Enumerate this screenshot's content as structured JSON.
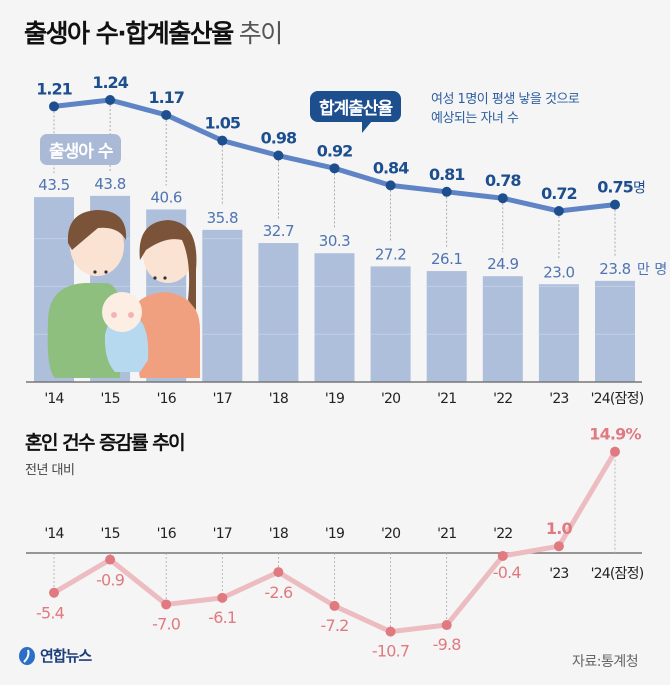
{
  "title": {
    "main": "출생아 수·합계출산율",
    "suffix": "추이"
  },
  "colors": {
    "bar": "#aebfdc",
    "bar_label": "#4f74b4",
    "tfr_line": "#5f84c6",
    "tfr_dot": "#1d4f8f",
    "tfr_label": "#1d4f8f",
    "marriage_line": "#ecbcc0",
    "marriage_dot": "#e07a80",
    "marriage_label": "#e07a80",
    "axis": "#777777"
  },
  "births_badge": "출생아 수",
  "tfr_badge": "합계출산율",
  "tfr_note": [
    "여성 1명이 평생 낳을 것으로",
    "예상되는 자녀 수"
  ],
  "section2": {
    "title": "혼인 건수 증감률 추이",
    "subtitle": "전년 대비"
  },
  "logo": "연합뉴스",
  "source": "자료:통계청",
  "chart_data": [
    {
      "type": "bar",
      "title": "출생아 수",
      "categories": [
        "'14",
        "'15",
        "'16",
        "'17",
        "'18",
        "'19",
        "'20",
        "'21",
        "'22",
        "'23",
        "'24(잠정)"
      ],
      "values": [
        43.5,
        43.8,
        40.6,
        35.8,
        32.7,
        30.3,
        27.2,
        26.1,
        24.9,
        23.0,
        23.8
      ],
      "labels": [
        "43.5",
        "43.8",
        "40.6",
        "35.8",
        "32.7",
        "30.3",
        "27.2",
        "26.1",
        "24.9",
        "23.0",
        "23.8"
      ],
      "unit": "만 명",
      "ylim": [
        0,
        45
      ]
    },
    {
      "type": "line",
      "title": "합계출산율",
      "categories": [
        "'14",
        "'15",
        "'16",
        "'17",
        "'18",
        "'19",
        "'20",
        "'21",
        "'22",
        "'23",
        "'24(잠정)"
      ],
      "values": [
        1.21,
        1.24,
        1.17,
        1.05,
        0.98,
        0.92,
        0.84,
        0.81,
        0.78,
        0.72,
        0.75
      ],
      "labels": [
        "1.21",
        "1.24",
        "1.17",
        "1.05",
        "0.98",
        "0.92",
        "0.84",
        "0.81",
        "0.78",
        "0.72",
        "0.75"
      ],
      "unit": "명",
      "ylim": [
        0.72,
        1.24
      ]
    },
    {
      "type": "line",
      "title": "혼인 건수 증감률 추이",
      "subtitle": "전년 대비",
      "categories": [
        "'14",
        "'15",
        "'16",
        "'17",
        "'18",
        "'19",
        "'20",
        "'21",
        "'22",
        "'23",
        "'24(잠정)"
      ],
      "values": [
        -5.4,
        -0.9,
        -7.0,
        -6.1,
        -2.6,
        -7.2,
        -10.7,
        -9.8,
        -0.4,
        1.0,
        14.9
      ],
      "labels": [
        "-5.4",
        "-0.9",
        "-7.0",
        "-6.1",
        "-2.6",
        "-7.2",
        "-10.7",
        "-9.8",
        "-0.4",
        "1.0",
        "14.9"
      ],
      "unit": "%",
      "ylim": [
        -10.7,
        14.9
      ]
    }
  ]
}
